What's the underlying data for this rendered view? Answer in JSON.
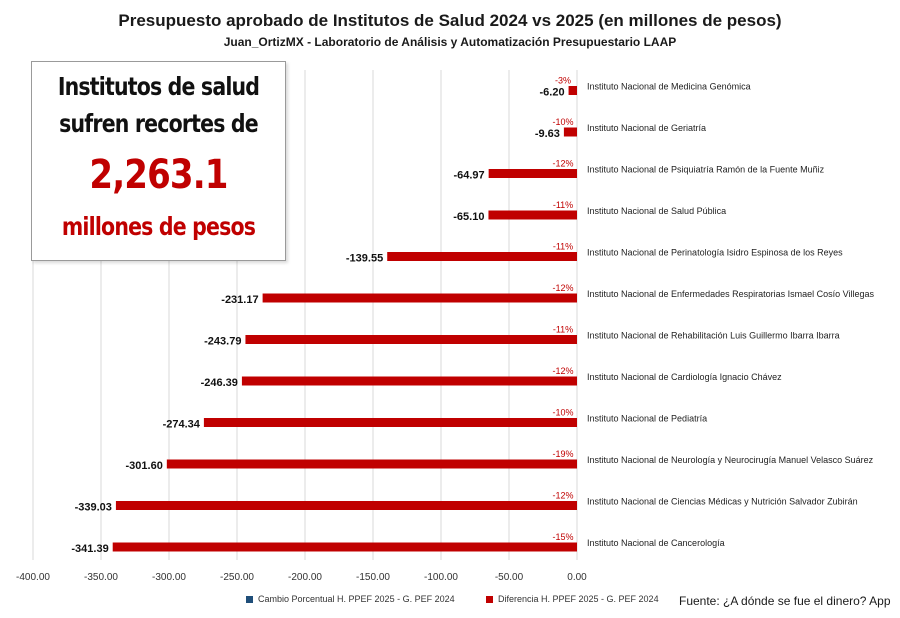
{
  "title": "Presupuesto aprobado  de Institutos de Salud 2024 vs 2025 (en millones de pesos)",
  "subtitle": "Juan_OrtizMX  - Laboratorio  de Análisis y Automatización  Presupuestario LAAP",
  "callout": {
    "line1": "Institutos de salud",
    "line2": "sufren recortes de",
    "amount": "2,263.1",
    "line4": "millones de pesos"
  },
  "source": "Fuente: ¿A dónde se fue el dinero? App",
  "colors": {
    "bar": "#c00000",
    "pct_series": "#1f4e79",
    "pct_label": "#c00000",
    "grid": "#d9d9d9"
  },
  "chart_data": {
    "type": "bar",
    "orientation": "horizontal",
    "title": "Presupuesto aprobado  de Institutos de Salud 2024 vs 2025 (en millones de pesos)",
    "xlim": [
      -400,
      0
    ],
    "xticks": [
      -400,
      -350,
      -300,
      -250,
      -200,
      -150,
      -100,
      -50,
      0
    ],
    "xtick_labels": [
      "-400.00",
      "-350.00",
      "-300.00",
      "-250.00",
      "-200.00",
      "-150.00",
      "-100.00",
      "-50.00",
      "0.00"
    ],
    "grid": "vertical",
    "legend_position": "bottom",
    "categories": [
      "Instituto Nacional de Medicina Genómica",
      "Instituto Nacional de Geriatría",
      "Instituto Nacional de Psiquiatría Ramón de la Fuente Muñiz",
      "Instituto Nacional de Salud Pública",
      "Instituto Nacional de Perinatología Isidro Espinosa de los Reyes",
      "Instituto Nacional de Enfermedades Respiratorias Ismael Cosío Villegas",
      "Instituto Nacional de Rehabilitación Luis Guillermo Ibarra Ibarra",
      "Instituto Nacional de Cardiología Ignacio Chávez",
      "Instituto Nacional de Pediatría",
      "Instituto Nacional de Neurología y Neurocirugía Manuel Velasco Suárez",
      "Instituto Nacional de Ciencias Médicas y Nutrición Salvador Zubirán",
      "Instituto Nacional de Cancerología"
    ],
    "series": [
      {
        "name": "Cambio Porcentual H. PPEF 2025 - G. PEF 2024",
        "values": [
          -3,
          -10,
          -12,
          -11,
          -11,
          -12,
          -11,
          -12,
          -10,
          -19,
          -12,
          -15
        ],
        "labels": [
          "-3%",
          "-10%",
          "-12%",
          "-11%",
          "-11%",
          "-12%",
          "-11%",
          "-12%",
          "-10%",
          "-19%",
          "-12%",
          "-15%"
        ]
      },
      {
        "name": "Diferencia H. PPEF 2025 - G. PEF 2024",
        "values": [
          -6.2,
          -9.63,
          -64.97,
          -65.1,
          -139.55,
          -231.17,
          -243.79,
          -246.39,
          -274.34,
          -301.6,
          -339.03,
          -341.39
        ],
        "labels": [
          "-6.20",
          "-9.63",
          "-64.97",
          "-65.10",
          "-139.55",
          "-231.17",
          "-243.79",
          "-246.39",
          "-274.34",
          "-301.60",
          "-339.03",
          "-341.39"
        ]
      }
    ]
  }
}
